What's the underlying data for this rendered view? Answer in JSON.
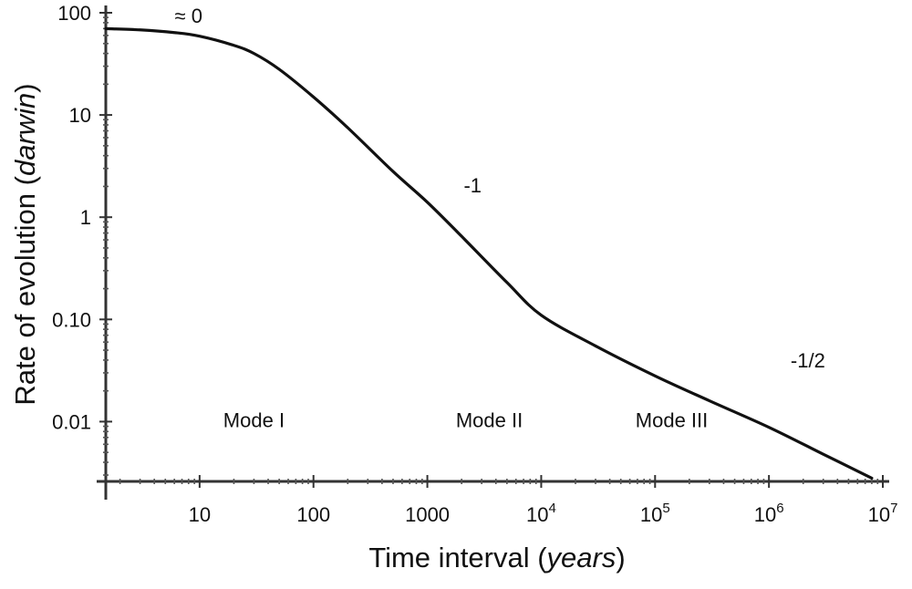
{
  "chart_data": {
    "type": "line",
    "title": "",
    "xlabel": "Time interval",
    "xlabel_unit": "years",
    "ylabel": "Rate of evolution",
    "ylabel_unit": "darwin",
    "x_scale": "log",
    "y_scale": "log",
    "xlim": [
      1.5,
      10000000
    ],
    "ylim": [
      0.0026,
      100
    ],
    "grid": false,
    "legend": "none",
    "x_ticks": [
      {
        "value": 10,
        "base": "10",
        "exp": ""
      },
      {
        "value": 100,
        "base": "100",
        "exp": ""
      },
      {
        "value": 1000,
        "base": "1000",
        "exp": ""
      },
      {
        "value": 10000,
        "base": "10",
        "exp": "4"
      },
      {
        "value": 100000,
        "base": "10",
        "exp": "5"
      },
      {
        "value": 1000000,
        "base": "10",
        "exp": "6"
      },
      {
        "value": 10000000,
        "base": "10",
        "exp": "7"
      }
    ],
    "y_ticks": [
      {
        "value": 100,
        "label": "100"
      },
      {
        "value": 10,
        "label": "10"
      },
      {
        "value": 1,
        "label": "1"
      },
      {
        "value": 0.1,
        "label": "0.10"
      },
      {
        "value": 0.01,
        "label": "0.01"
      }
    ],
    "series": [
      {
        "x": [
          1.5,
          3,
          6,
          10,
          20,
          30,
          50,
          100,
          200,
          500,
          1000,
          2000,
          5000,
          10000,
          30000,
          100000,
          300000,
          1000000,
          3000000,
          8000000
        ],
        "y": [
          70,
          68,
          64,
          59,
          48,
          40,
          28,
          15,
          7.5,
          2.8,
          1.4,
          0.65,
          0.23,
          0.11,
          0.055,
          0.028,
          0.016,
          0.0088,
          0.0048,
          0.0028
        ]
      }
    ],
    "annotations": [
      {
        "text": "≈ 0",
        "x": 8,
        "y": 80
      },
      {
        "text": "-1",
        "x": 2500,
        "y": 1.75
      },
      {
        "text": "-1/2",
        "x": 2200000,
        "y": 0.034
      },
      {
        "text": "Mode I",
        "x": 30,
        "y": 0.0088
      },
      {
        "text": "Mode II",
        "x": 3500,
        "y": 0.0088
      },
      {
        "text": "Mode III",
        "x": 140000,
        "y": 0.0088
      }
    ]
  },
  "colors": {
    "line": "#111111",
    "axis": "#333333",
    "background": "#ffffff"
  }
}
